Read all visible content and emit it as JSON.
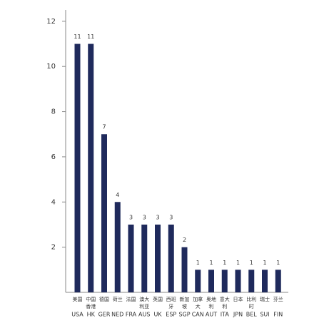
{
  "chart_data": {
    "type": "bar",
    "categories": [
      "USA",
      "HK",
      "GER",
      "NED",
      "FRA",
      "AUS",
      "UK",
      "ESP",
      "SGP",
      "CAN",
      "AUT",
      "ITA",
      "JPN",
      "BEL",
      "SUI",
      "FIN"
    ],
    "categories_cn": [
      [
        "美国"
      ],
      [
        "中国",
        "香港"
      ],
      [
        "德国"
      ],
      [
        "荷兰"
      ],
      [
        "法国"
      ],
      [
        "澳大",
        "利亚"
      ],
      [
        "英国"
      ],
      [
        "西班",
        "牙"
      ],
      [
        "新加",
        "坡"
      ],
      [
        "加拿",
        "大"
      ],
      [
        "奥地",
        "利"
      ],
      [
        "意大",
        "利"
      ],
      [
        "日本"
      ],
      [
        "比利",
        "时"
      ],
      [
        "瑞士"
      ],
      [
        "芬兰"
      ]
    ],
    "values": [
      11,
      11,
      7,
      4,
      3,
      3,
      3,
      3,
      2,
      1,
      1,
      1,
      1,
      1,
      1,
      1
    ],
    "color": "#1f2a5c",
    "ylim": [
      0,
      12.5
    ],
    "yticks": [
      2,
      4,
      6,
      8,
      10,
      12
    ],
    "grid": false
  }
}
